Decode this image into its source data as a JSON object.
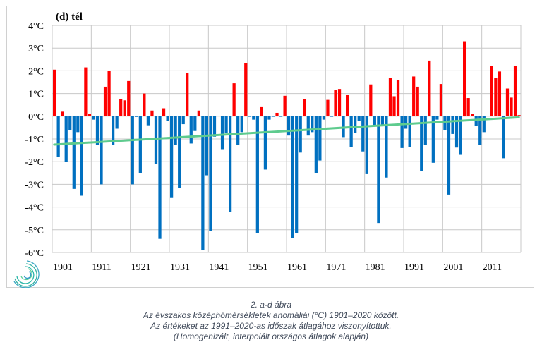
{
  "chart_data": {
    "type": "bar",
    "title": "(d) tél",
    "xlabel": "",
    "ylabel": "",
    "ylim": [
      -6,
      4
    ],
    "yticks": [
      "4°C",
      "3°C",
      "2°C",
      "1°C",
      "0°C",
      "-1°C",
      "-2°C",
      "-3°C",
      "-4°C",
      "-5°C",
      "-6°C"
    ],
    "ytick_values": [
      4,
      3,
      2,
      1,
      0,
      -1,
      -2,
      -3,
      -4,
      -5,
      -6
    ],
    "xticks": [
      "1901",
      "1911",
      "1921",
      "1931",
      "1941",
      "1951",
      "1961",
      "1971",
      "1981",
      "1991",
      "2001",
      "2011"
    ],
    "grid": true,
    "start_year": 1901,
    "end_year": 2020,
    "positive_color": "#ff0000",
    "negative_color": "#0070c0",
    "trend_color": "#5ecb8e",
    "trend": {
      "start": -1.25,
      "end": -0.05
    },
    "values": [
      2.05,
      -1.8,
      0.2,
      -2.0,
      -0.6,
      -3.2,
      -0.7,
      -3.5,
      2.15,
      0.1,
      -0.15,
      -1.25,
      -3.0,
      1.3,
      2.0,
      -1.25,
      -0.55,
      0.75,
      0.7,
      1.55,
      -3.0,
      -0.03,
      -2.5,
      1.0,
      -0.4,
      0.25,
      -2.1,
      -5.4,
      0.35,
      -0.2,
      -3.6,
      -1.25,
      -3.15,
      -0.35,
      1.9,
      -1.2,
      -0.65,
      0.25,
      -5.9,
      -2.6,
      -5.05,
      -0.9,
      0.02,
      -1.45,
      -0.75,
      -4.2,
      1.45,
      -1.25,
      -0.7,
      2.35,
      -0.02,
      -0.15,
      -5.15,
      0.4,
      -2.35,
      -0.15,
      -0.02,
      0.15,
      -0.02,
      0.9,
      -0.85,
      -5.35,
      -5.15,
      -1.6,
      0.75,
      -0.85,
      -0.7,
      -2.5,
      -1.95,
      -0.15,
      0.72,
      -0.02,
      1.15,
      1.2,
      -0.92,
      0.95,
      -1.35,
      -0.75,
      -0.2,
      -1.55,
      -2.55,
      1.4,
      -0.42,
      -4.7,
      -0.4,
      -2.7,
      1.7,
      0.88,
      1.6,
      -1.4,
      -0.55,
      -1.35,
      1.75,
      1.3,
      -2.42,
      -1.25,
      2.45,
      -2.05,
      -0.15,
      1.42,
      -0.6,
      -3.45,
      -0.78,
      -1.38,
      -1.7,
      3.3,
      0.8,
      0.1,
      -0.42,
      -1.27,
      -0.7,
      0.02,
      2.2,
      1.7,
      1.97,
      -1.85,
      1.22,
      0.82,
      2.23,
      0.05
    ]
  },
  "caption": {
    "line1": "2. a-d ábra",
    "line2": "Az évszakos középhőmérsékletek anomáliái (°C) 1901–2020 között.",
    "line3": "Az értékeket az 1991–2020-as időszak átlagához viszonyítottuk.",
    "line4": "(Homogenizált, interpolált országos átlagok alapján)"
  },
  "logo": {
    "icon": "swirl-logo-icon"
  }
}
